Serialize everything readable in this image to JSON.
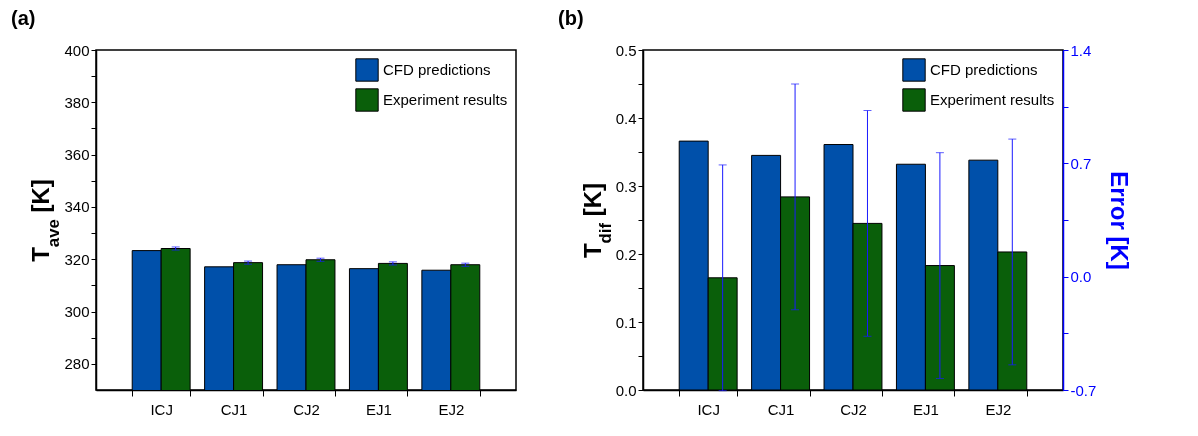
{
  "chart_data": [
    {
      "type": "bar",
      "title": "(a)",
      "ylabel": "T$_{ave}$ [K]",
      "categories": [
        "ICJ",
        "CJ1",
        "CJ2",
        "EJ1",
        "EJ2"
      ],
      "series": [
        {
          "name": "CFD predictions",
          "color": "#0050aa",
          "values": [
            323.3,
            317.1,
            317.9,
            316.4,
            315.8
          ]
        },
        {
          "name": "Experiment results",
          "color": "#0a5f0a",
          "values": [
            324.1,
            318.7,
            319.8,
            318.4,
            317.9
          ],
          "errors": [
            0.6,
            0.6,
            0.6,
            0.6,
            0.6
          ]
        }
      ],
      "ylim": [
        270,
        400
      ],
      "yticks": [
        280,
        {
          "value": 290,
          "label": null
        },
        300,
        {
          "value": 310,
          "label": null
        },
        320,
        {
          "value": 330,
          "label": null
        },
        340,
        {
          "value": 350,
          "label": null
        },
        360,
        {
          "value": 370,
          "label": null
        },
        380,
        {
          "value": 390,
          "label": null
        },
        400
      ],
      "legend": "top right",
      "grid": false
    },
    {
      "type": "bar",
      "title": "(b)",
      "ylabel": "T$_{dif}$ [K]",
      "y2label": "Error [K]",
      "categories": [
        "ICJ",
        "CJ1",
        "CJ2",
        "EJ1",
        "EJ2"
      ],
      "series": [
        {
          "name": "CFD predictions",
          "color": "#0050aa",
          "values": [
            0.366,
            0.345,
            0.361,
            0.332,
            0.338
          ]
        },
        {
          "name": "Experiment results",
          "color": "#0a5f0a",
          "values": [
            0.165,
            0.284,
            0.245,
            0.183,
            0.203
          ],
          "errors": [
            0.166,
            0.166,
            0.166,
            0.166,
            0.166
          ]
        }
      ],
      "ylim": [
        0,
        0.5
      ],
      "yticks": [
        {
          "value": 0,
          "label": "0.0"
        },
        {
          "value": 0.05,
          "label": null
        },
        0.1,
        {
          "value": 0.15,
          "label": null
        },
        0.2,
        {
          "value": 0.25,
          "label": null
        },
        0.3,
        {
          "value": 0.35,
          "label": null
        },
        0.4,
        {
          "value": 0.45,
          "label": null
        },
        0.5
      ],
      "y2lim": [
        -0.7,
        1.4
      ],
      "y2ticks": [
        -0.7,
        {
          "value": -0.35,
          "label": null
        },
        {
          "value": 0,
          "label": "0.0"
        },
        {
          "value": 0.35,
          "label": null
        },
        0.7,
        {
          "value": 1.05,
          "label": null
        },
        1.4
      ],
      "legend": "top right",
      "grid": false
    }
  ]
}
